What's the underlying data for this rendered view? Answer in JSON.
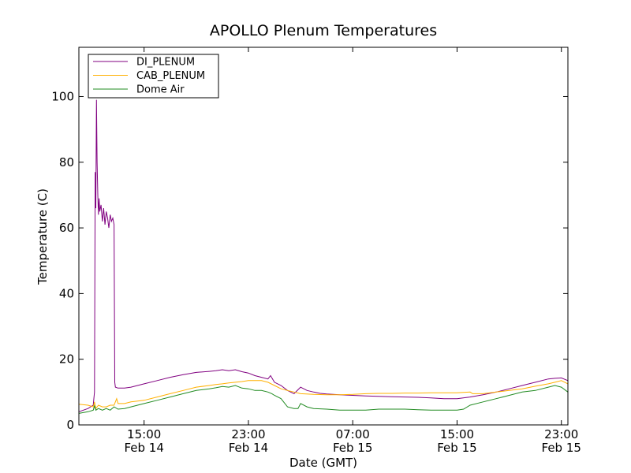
{
  "chart_data": {
    "type": "line",
    "title": "APOLLO Plenum Temperatures",
    "xlabel": "Date (GMT)",
    "ylabel": "Temperature (C)",
    "x_unit": "hours since Feb 14 10:00 GMT",
    "xlim": [
      0,
      37.5
    ],
    "ylim": [
      0,
      115
    ],
    "yticks": [
      0,
      20,
      40,
      60,
      80,
      100
    ],
    "xticks": [
      {
        "x": 5,
        "time": "15:00",
        "date": "Feb 14"
      },
      {
        "x": 13,
        "time": "23:00",
        "date": "Feb 14"
      },
      {
        "x": 21,
        "time": "07:00",
        "date": "Feb 15"
      },
      {
        "x": 29,
        "time": "15:00",
        "date": "Feb 15"
      },
      {
        "x": 37,
        "time": "23:00",
        "date": "Feb 15"
      }
    ],
    "grid": false,
    "legend_position": "top-left",
    "series": [
      {
        "name": "DI_PLENUM",
        "color": "#800080",
        "x": [
          0,
          0.7,
          1.1,
          1.2,
          1.25,
          1.3,
          1.35,
          1.4,
          1.45,
          1.5,
          1.55,
          1.6,
          1.7,
          1.8,
          1.9,
          2.0,
          2.1,
          2.2,
          2.3,
          2.4,
          2.5,
          2.6,
          2.7,
          2.72,
          2.75,
          2.8,
          3.0,
          3.5,
          4.0,
          5,
          6,
          7,
          8,
          9,
          10,
          10.5,
          11,
          11.5,
          12,
          12.5,
          13,
          13.5,
          14,
          14.5,
          14.7,
          15,
          15.5,
          16,
          16.5,
          17,
          17.5,
          18,
          18.5,
          19,
          19.5,
          20,
          21,
          22,
          23,
          24,
          25,
          26,
          27,
          28,
          29,
          30,
          31,
          32,
          33,
          34,
          35,
          36,
          36.5,
          37,
          37.5
        ],
        "values": [
          4,
          5,
          6,
          10,
          77,
          66,
          99,
          80,
          70,
          64,
          69,
          65,
          67,
          62,
          66,
          61,
          65,
          63,
          60,
          64,
          62,
          63,
          61,
          40,
          13,
          11.5,
          11.2,
          11.2,
          11.5,
          12.5,
          13.5,
          14.5,
          15.3,
          16,
          16.3,
          16.5,
          16.8,
          16.5,
          16.8,
          16.2,
          15.8,
          15,
          14.5,
          14,
          15,
          13,
          12,
          10.5,
          9.5,
          11.5,
          10.5,
          10,
          9.6,
          9.4,
          9.3,
          9.2,
          9,
          8.8,
          8.7,
          8.6,
          8.5,
          8.4,
          8.2,
          8,
          8,
          8.5,
          9.2,
          10,
          11,
          12,
          13,
          14,
          14.2,
          14.3,
          13.5
        ]
      },
      {
        "name": "CAB_PLENUM",
        "color": "#ffb000",
        "x": [
          0,
          0.7,
          1.1,
          1.2,
          1.3,
          1.5,
          1.8,
          2.1,
          2.4,
          2.7,
          2.9,
          3.0,
          3.5,
          4.0,
          5,
          6,
          7,
          8,
          9,
          10,
          10.5,
          11,
          11.5,
          12,
          12.5,
          13,
          13.5,
          14,
          14.5,
          15,
          15.5,
          16,
          16.5,
          17,
          18,
          19,
          20,
          21,
          22,
          23,
          24,
          25,
          26,
          27,
          28,
          29,
          29.5,
          30,
          30.2,
          31,
          32,
          33,
          34,
          35,
          36,
          36.5,
          37,
          37.5
        ],
        "values": [
          6.3,
          6,
          5.5,
          7,
          5,
          6,
          5.5,
          5.5,
          6,
          6,
          8,
          6.5,
          6.5,
          7,
          7.5,
          8.5,
          9.5,
          10.5,
          11.5,
          12,
          12.3,
          12.5,
          12.8,
          13,
          13.2,
          13.5,
          13.5,
          13.5,
          13,
          12,
          11,
          10.5,
          10,
          9.5,
          9.3,
          9.2,
          9.2,
          9.3,
          9.5,
          9.6,
          9.6,
          9.7,
          9.7,
          9.8,
          9.8,
          9.8,
          9.9,
          10,
          9.5,
          9.5,
          10,
          10.5,
          11,
          11.8,
          12.5,
          13,
          13.5,
          12.5
        ]
      },
      {
        "name": "Dome Air",
        "color": "#228b22",
        "x": [
          0,
          0.7,
          1.1,
          1.2,
          1.3,
          1.5,
          1.8,
          2.1,
          2.4,
          2.7,
          3.0,
          3.5,
          4.0,
          5,
          6,
          7,
          8,
          9,
          10,
          10.5,
          11,
          11.5,
          12,
          12.5,
          13,
          13.5,
          14,
          14.5,
          14.8,
          15,
          15.5,
          16,
          16.5,
          16.8,
          17,
          17.5,
          18,
          19,
          20,
          21,
          22,
          23,
          24,
          25,
          26,
          27,
          28,
          29,
          29.5,
          30,
          31,
          32,
          33,
          34,
          35,
          36,
          36.5,
          37,
          37.5
        ],
        "values": [
          3.5,
          4,
          4.5,
          5.8,
          4.5,
          5,
          4.5,
          5,
          4.5,
          5.5,
          4.8,
          5,
          5.5,
          6.5,
          7.5,
          8.5,
          9.5,
          10.5,
          11,
          11.3,
          11.7,
          11.5,
          12,
          11.2,
          11,
          10.5,
          10.5,
          10,
          9.5,
          9,
          8,
          5.5,
          5,
          5,
          6.5,
          5.5,
          5,
          4.8,
          4.5,
          4.5,
          4.5,
          4.8,
          4.8,
          4.8,
          4.6,
          4.5,
          4.5,
          4.5,
          4.8,
          6,
          7,
          8,
          9,
          10,
          10.5,
          11.5,
          12,
          11.5,
          10
        ]
      }
    ]
  }
}
